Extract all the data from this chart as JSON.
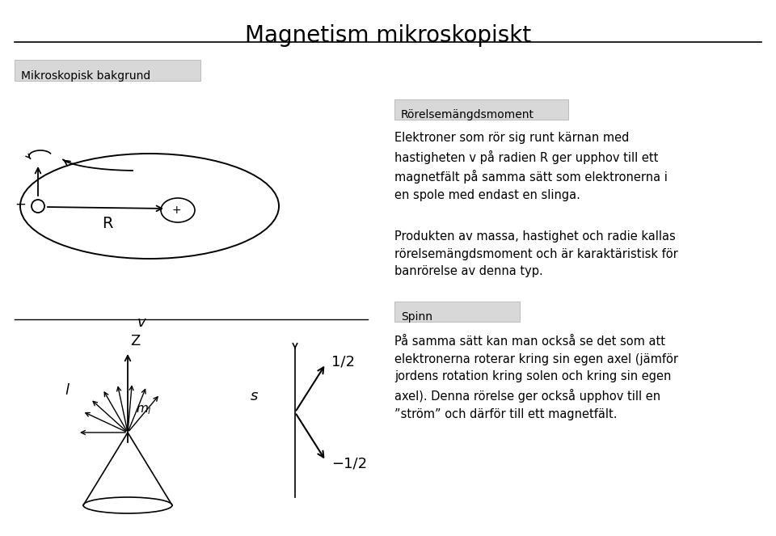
{
  "title": "Magnetism mikroskopiskt",
  "bg_color": "#ffffff",
  "label_bg": "#d8d8d8",
  "title_fontsize": 20,
  "body_fontsize": 10.5,
  "section1_label": "Mikroskopisk bakgrund",
  "section2_label": "Rörelsemängdsmoment",
  "section3_label": "Spinn",
  "text_rorelsemangd1": "Elektroner som rör sig runt kärnan med\nhastigheten v på radien R ger upphov till ett\nmagnetfält på samma sätt som elektronerna i\nen spole med endast en slinga.",
  "text_rorelsemangd2": "Produkten av massa, hastighet och radie kallas\nrörelsemängdsmoment och är karaktäristisk för\nbanrörelse av denna typ.",
  "text_spinn": "På samma sätt kan man också se det som att\nelektronerna roterar kring sin egen axel (jämför\njordens rotation kring solen och kring sin egen\naxel). Denna rörelse ger också upphov till en\n”ström” och därför till ett magnetfält."
}
